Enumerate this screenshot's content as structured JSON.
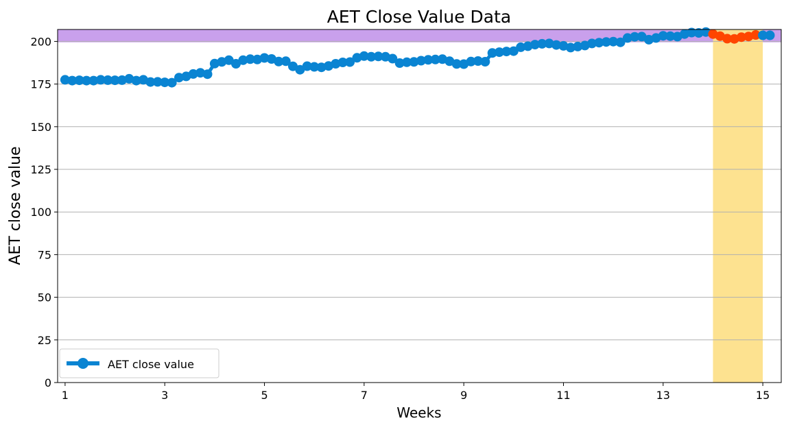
{
  "chart_data": {
    "type": "line",
    "title": "AET Close Value Data",
    "xlabel": "Weeks",
    "ylabel": "AET close value",
    "xlim": [
      0.85,
      15.37
    ],
    "ylim": [
      0,
      207
    ],
    "x_ticks": [
      1,
      3,
      5,
      7,
      9,
      11,
      13,
      15
    ],
    "y_ticks": [
      0,
      25,
      50,
      75,
      100,
      125,
      150,
      175,
      200
    ],
    "grid": "horizontal",
    "legend": {
      "position": "bottom-left",
      "entries": [
        "AET close value"
      ]
    },
    "colors": {
      "series": "#0a84d2",
      "highlight_points": "#ff4500",
      "band_horizontal": "#c9a0ec",
      "band_vertical": "#fde08a"
    },
    "horizontal_band": {
      "y_from": 199.5,
      "y_to": 207
    },
    "vertical_band": {
      "x_from": 14.0,
      "x_to": 15.0
    },
    "series": [
      {
        "name": "AET close value",
        "x": [
          1.0,
          1.143,
          1.286,
          1.429,
          1.571,
          1.714,
          1.857,
          2.0,
          2.143,
          2.286,
          2.429,
          2.571,
          2.714,
          2.857,
          3.0,
          3.143,
          3.286,
          3.429,
          3.571,
          3.714,
          3.857,
          4.0,
          4.143,
          4.286,
          4.429,
          4.571,
          4.714,
          4.857,
          5.0,
          5.143,
          5.286,
          5.429,
          5.571,
          5.714,
          5.857,
          6.0,
          6.143,
          6.286,
          6.429,
          6.571,
          6.714,
          6.857,
          7.0,
          7.143,
          7.286,
          7.429,
          7.571,
          7.714,
          7.857,
          8.0,
          8.143,
          8.286,
          8.429,
          8.571,
          8.714,
          8.857,
          9.0,
          9.143,
          9.286,
          9.429,
          9.571,
          9.714,
          9.857,
          10.0,
          10.143,
          10.286,
          10.429,
          10.571,
          10.714,
          10.857,
          11.0,
          11.143,
          11.286,
          11.429,
          11.571,
          11.714,
          11.857,
          12.0,
          12.143,
          12.286,
          12.429,
          12.571,
          12.714,
          12.857,
          13.0,
          13.143,
          13.286,
          13.429,
          13.571,
          13.714,
          13.857,
          14.0,
          14.143,
          14.286,
          14.429,
          14.571,
          14.714,
          14.857,
          15.0,
          15.143
        ],
        "values": [
          177.5,
          177.0,
          177.2,
          177.0,
          177.0,
          177.5,
          177.3,
          177.2,
          177.3,
          178.1,
          177.0,
          177.5,
          176.2,
          176.3,
          176.0,
          175.8,
          178.8,
          179.5,
          180.9,
          181.6,
          180.8,
          187.0,
          188.0,
          189.0,
          186.9,
          189.0,
          189.6,
          189.4,
          190.3,
          189.7,
          188.2,
          188.4,
          185.4,
          183.4,
          185.5,
          185.1,
          184.8,
          185.6,
          186.9,
          187.7,
          187.9,
          190.4,
          191.4,
          191.0,
          191.2,
          191.0,
          189.9,
          187.3,
          187.8,
          188.0,
          188.7,
          189.2,
          189.4,
          189.6,
          188.4,
          186.8,
          186.7,
          188.2,
          188.5,
          188.1,
          193.2,
          193.7,
          194.1,
          194.3,
          196.6,
          197.2,
          198.1,
          198.6,
          198.8,
          197.9,
          197.4,
          196.4,
          197.0,
          197.6,
          198.8,
          199.3,
          199.7,
          199.9,
          199.5,
          202.0,
          202.7,
          202.8,
          201.0,
          202.0,
          203.3,
          203.1,
          202.8,
          204.3,
          205.2,
          205.0,
          205.5,
          204.3,
          203.1,
          201.6,
          201.5,
          202.5,
          202.9,
          203.8,
          203.6,
          203.6
        ]
      }
    ],
    "highlighted_range": {
      "x_from": 14.0,
      "x_to": 14.857,
      "color": "highlight_points"
    }
  }
}
